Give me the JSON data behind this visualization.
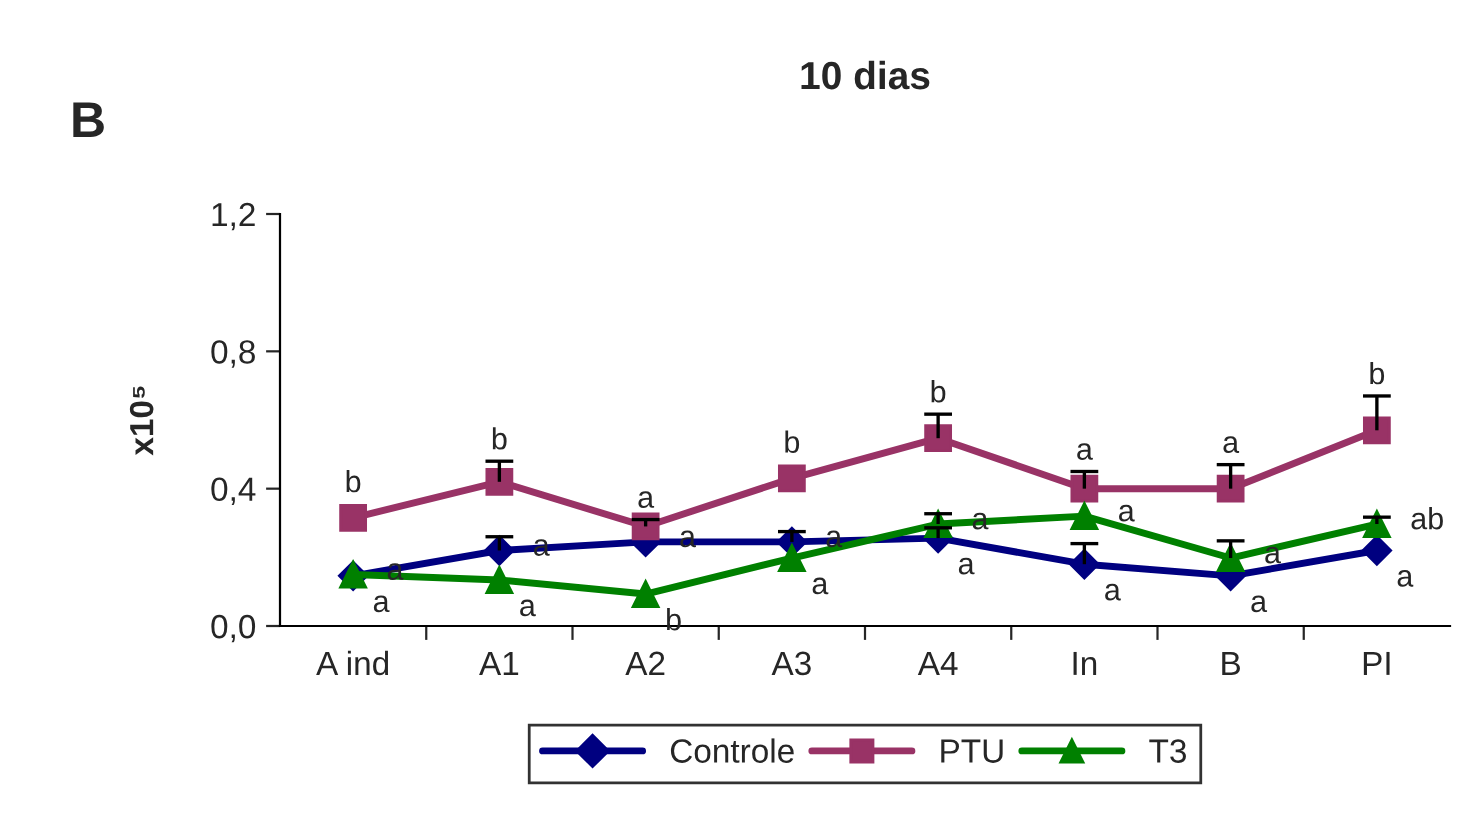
{
  "chart_data": {
    "type": "line",
    "title": "10 dias",
    "ylabel": "x10⁵",
    "annotations": [
      "B"
    ],
    "categories": [
      "A ind",
      "A1",
      "A2",
      "A3",
      "A4",
      "In",
      "B",
      "PI"
    ],
    "series": [
      {
        "name": "Controle",
        "color": "#000080",
        "marker": "diamond",
        "values": [
          0.146,
          0.22,
          0.245,
          0.245,
          0.256,
          0.18,
          0.146,
          0.22
        ],
        "errors": [
          null,
          [
            0.22,
            0.26
          ],
          null,
          [
            0.245,
            0.275
          ],
          [
            0.256,
            0.286
          ],
          [
            0.18,
            0.24
          ],
          null,
          null
        ],
        "value_labels": [
          "a",
          "a",
          "a",
          "a",
          "a",
          "a",
          "a",
          "a"
        ]
      },
      {
        "name": "PTU",
        "color": "#993366",
        "marker": "square",
        "values": [
          0.315,
          0.42,
          0.29,
          0.43,
          0.547,
          0.4,
          0.4,
          0.57
        ],
        "errors": [
          null,
          [
            0.42,
            0.48
          ],
          [
            0.29,
            0.31
          ],
          null,
          [
            0.547,
            0.617
          ],
          [
            0.4,
            0.45
          ],
          [
            0.4,
            0.47
          ],
          [
            0.57,
            0.67
          ]
        ],
        "value_labels": [
          "b",
          "b",
          "a",
          "b",
          "b",
          "a",
          "a",
          "b"
        ]
      },
      {
        "name": "T3",
        "color": "#008000",
        "marker": "triangle",
        "values": [
          0.15,
          0.134,
          0.093,
          0.198,
          0.297,
          0.32,
          0.198,
          0.297
        ],
        "errors": [
          null,
          null,
          null,
          null,
          [
            0.297,
            0.327
          ],
          null,
          [
            0.198,
            0.248
          ],
          [
            0.297,
            0.317
          ]
        ],
        "value_labels": [
          "a",
          "a",
          "b",
          "a",
          "a",
          "a",
          "a",
          "ab"
        ]
      }
    ],
    "ylim": [
      0,
      1.2
    ],
    "yticks": [
      {
        "value": 0,
        "label": "0,0"
      },
      {
        "value": 0.4,
        "label": "0,4"
      },
      {
        "value": 0.8,
        "label": "0,8"
      },
      {
        "value": 1.2,
        "label": "1,2"
      }
    ],
    "grid": false,
    "legend": "bottom",
    "line_style": "solid"
  }
}
